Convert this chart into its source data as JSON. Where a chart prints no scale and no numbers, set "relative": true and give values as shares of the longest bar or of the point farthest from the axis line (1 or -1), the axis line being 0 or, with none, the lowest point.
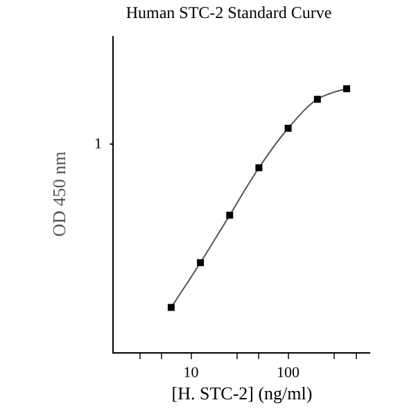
{
  "chart_data": {
    "type": "line",
    "title": "Human STC-2 Standard Curve",
    "xlabel": "[H. STC-2] (ng/ml)",
    "ylabel": "OD 450 nm",
    "x": [
      6.25,
      12.5,
      25,
      50,
      100,
      200,
      400
    ],
    "series": [
      {
        "color": "#000000",
        "values": [
          0.17,
          0.34,
          0.52,
          0.7,
          0.85,
          0.96,
          1
        ]
      }
    ],
    "relative": true,
    "log": "x",
    "xlim": [
      1.6,
      700
    ],
    "xticks": [
      {
        "value": 3,
        "label": null
      },
      {
        "value": 5,
        "label": null
      },
      10,
      {
        "value": 30,
        "label": null
      },
      {
        "value": 50,
        "label": null
      },
      100,
      {
        "value": 300,
        "label": null
      },
      {
        "value": 500,
        "label": null
      }
    ],
    "annotations": [
      "1"
    ],
    "marker": "square",
    "line_style": "solid",
    "legend": false
  }
}
